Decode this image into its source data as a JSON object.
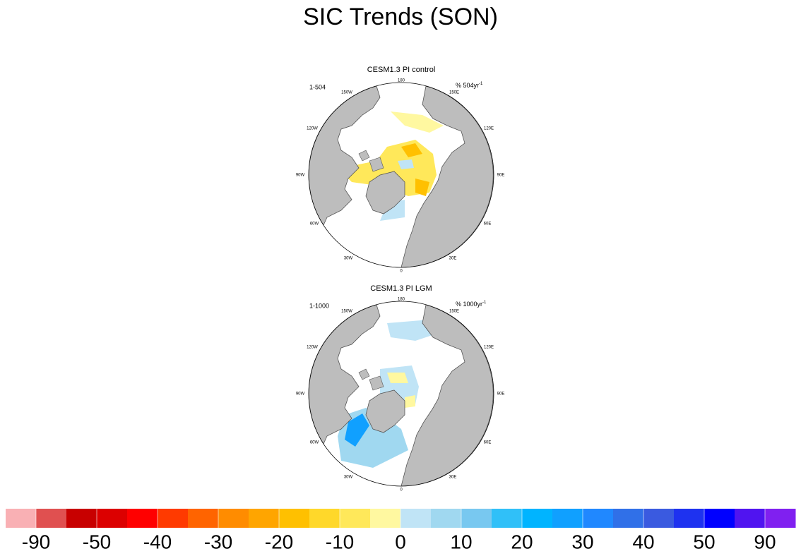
{
  "title": "SIC Trends (SON)",
  "panels": [
    {
      "title": "CESM1.3 PI control",
      "left_label": "1-504",
      "right_label": "% 504yr",
      "right_label_sup": "-1",
      "longitude_labels": [
        "180",
        "150W",
        "150E",
        "120W",
        "120E",
        "90W",
        "90E",
        "60W",
        "60E",
        "30W",
        "30E",
        "0"
      ]
    },
    {
      "title": "CESM1.3 PI LGM",
      "left_label": "1-1000",
      "right_label": "% 1000yr",
      "right_label_sup": "-1",
      "longitude_labels": [
        "180",
        "150W",
        "150E",
        "120W",
        "120E",
        "90W",
        "90E",
        "60W",
        "60E",
        "30W",
        "30E",
        "0"
      ]
    }
  ],
  "colorbar": {
    "levels": [
      -90,
      -50,
      -40,
      -30,
      -20,
      -10,
      0,
      10,
      20,
      30,
      40,
      50,
      90
    ],
    "colors": [
      "#f9b0b4",
      "#e05050",
      "#c80000",
      "#dc0000",
      "#ff0000",
      "#ff3a00",
      "#ff6400",
      "#ff8c00",
      "#ffa500",
      "#ffc000",
      "#ffd82a",
      "#ffe85a",
      "#fff8a0",
      "#c0e4f6",
      "#a0d8f0",
      "#78c8f0",
      "#30c0f8",
      "#00b4ff",
      "#10a0ff",
      "#2088ff",
      "#3070e8",
      "#3a5ae0",
      "#1e32f0",
      "#0000ff",
      "#5014f0",
      "#8020f0"
    ]
  }
}
